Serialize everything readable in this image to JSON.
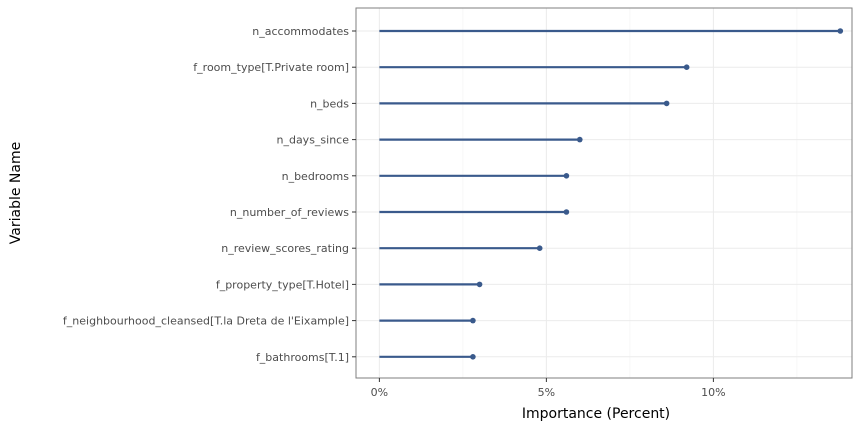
{
  "chart_data": {
    "type": "lollipop",
    "orientation": "horizontal",
    "xlabel": "Importance (Percent)",
    "ylabel": "Variable Name",
    "xlim": [
      -0.7,
      14.15
    ],
    "x_ticks": [
      0,
      5,
      10
    ],
    "x_tick_labels": [
      "0%",
      "5%",
      "10%"
    ],
    "grid": true,
    "color": "#3a5a8c",
    "categories": [
      "n_accommodates",
      "f_room_type[T.Private room]",
      "n_beds",
      "n_days_since",
      "n_bedrooms",
      "n_number_of_reviews",
      "n_review_scores_rating",
      "f_property_type[T.Hotel]",
      "f_neighbourhood_cleansed[T.la Dreta de l'Eixample]",
      "f_bathrooms[T.1]"
    ],
    "values": [
      13.8,
      9.2,
      8.6,
      6.0,
      5.6,
      5.6,
      4.8,
      3.0,
      2.8,
      2.8
    ]
  }
}
